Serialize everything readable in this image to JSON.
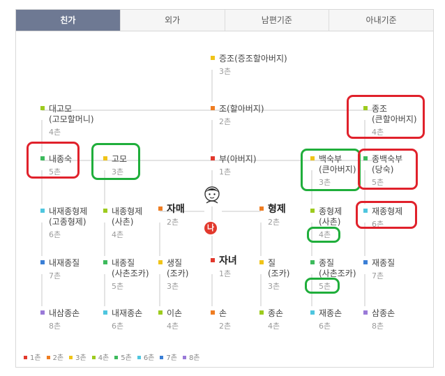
{
  "tabs": [
    {
      "label": "친가",
      "active": true
    },
    {
      "label": "외가",
      "active": false
    },
    {
      "label": "남편기준",
      "active": false
    },
    {
      "label": "아내기준",
      "active": false
    }
  ],
  "colors": {
    "1": "#e2392d",
    "2": "#ef7d22",
    "3": "#f0c419",
    "4": "#9dcb1e",
    "5": "#3dba5c",
    "6": "#4fc6df",
    "7": "#3b7fd6",
    "8": "#9a7ad8"
  },
  "nodes": [
    {
      "id": "jeungjo",
      "l1": "증조(증조할아버지)",
      "l2": "",
      "chon": "3촌",
      "c": "3"
    },
    {
      "id": "jo",
      "l1": "조(할아버지)",
      "l2": "",
      "chon": "2촌",
      "c": "2"
    },
    {
      "id": "dae-gomo",
      "l1": "대고모",
      "l2": "(고모할머니)",
      "chon": "4촌",
      "c": "4"
    },
    {
      "id": "jongjo",
      "l1": "종조",
      "l2": "(큰할아버지)",
      "chon": "4촌",
      "c": "4"
    },
    {
      "id": "naejongsuk",
      "l1": "내종숙",
      "l2": "",
      "chon": "5촌",
      "c": "5"
    },
    {
      "id": "gomo",
      "l1": "고모",
      "l2": "",
      "chon": "3촌",
      "c": "3"
    },
    {
      "id": "bu",
      "l1": "부(아버지)",
      "l2": "",
      "chon": "1촌",
      "c": "1"
    },
    {
      "id": "baeksukbu",
      "l1": "백숙부",
      "l2": "(큰아버지)",
      "chon": "3촌",
      "c": "3"
    },
    {
      "id": "jongbaeksukbu",
      "l1": "종백숙부",
      "l2": "(당숙)",
      "chon": "5촌",
      "c": "5"
    },
    {
      "id": "naejaejonghyeongje",
      "l1": "내재종형제",
      "l2": "(고종형제)",
      "chon": "6촌",
      "c": "6"
    },
    {
      "id": "naejonghyeongje",
      "l1": "내종형제",
      "l2": "(사촌)",
      "chon": "4촌",
      "c": "4"
    },
    {
      "id": "jamae",
      "l1": "자매",
      "l2": "",
      "chon": "2촌",
      "c": "2",
      "big": true
    },
    {
      "id": "hyeongje",
      "l1": "형제",
      "l2": "",
      "chon": "2촌",
      "c": "2",
      "big": true
    },
    {
      "id": "jonghyeongje",
      "l1": "종형제",
      "l2": "(사촌)",
      "chon": "4촌",
      "c": "4"
    },
    {
      "id": "jaejonghyeongje",
      "l1": "재종형제",
      "l2": "",
      "chon": "6촌",
      "c": "6"
    },
    {
      "id": "naejaejongjil",
      "l1": "내재종질",
      "l2": "",
      "chon": "7촌",
      "c": "7"
    },
    {
      "id": "naejongjil",
      "l1": "내종질",
      "l2": "(사촌조카)",
      "chon": "5촌",
      "c": "5"
    },
    {
      "id": "saengjil",
      "l1": "생질",
      "l2": "(조카)",
      "chon": "3촌",
      "c": "3"
    },
    {
      "id": "janyeo",
      "l1": "자녀",
      "l2": "",
      "chon": "1촌",
      "c": "1",
      "big": true
    },
    {
      "id": "jil",
      "l1": "질",
      "l2": "(조카)",
      "chon": "3촌",
      "c": "3"
    },
    {
      "id": "jongjil",
      "l1": "종질",
      "l2": "(사촌조카)",
      "chon": "5촌",
      "c": "5"
    },
    {
      "id": "jaejongjil",
      "l1": "재종질",
      "l2": "",
      "chon": "7촌",
      "c": "7"
    },
    {
      "id": "naesamjongson",
      "l1": "내삼종손",
      "l2": "",
      "chon": "8촌",
      "c": "8"
    },
    {
      "id": "naejaejongson",
      "l1": "내재종손",
      "l2": "",
      "chon": "6촌",
      "c": "6"
    },
    {
      "id": "ison",
      "l1": "이손",
      "l2": "",
      "chon": "4촌",
      "c": "4"
    },
    {
      "id": "son",
      "l1": "손",
      "l2": "",
      "chon": "2촌",
      "c": "2"
    },
    {
      "id": "jongson",
      "l1": "종손",
      "l2": "",
      "chon": "4촌",
      "c": "4"
    },
    {
      "id": "jaejongson",
      "l1": "재종손",
      "l2": "",
      "chon": "6촌",
      "c": "6"
    },
    {
      "id": "samjongson",
      "l1": "삼종손",
      "l2": "",
      "chon": "8촌",
      "c": "8"
    }
  ],
  "me": {
    "label": "나"
  },
  "legend": [
    {
      "c": "1",
      "label": "1촌"
    },
    {
      "c": "2",
      "label": "2촌"
    },
    {
      "c": "3",
      "label": "3촌"
    },
    {
      "c": "4",
      "label": "4촌"
    },
    {
      "c": "5",
      "label": "5촌"
    },
    {
      "c": "6",
      "label": "6촌"
    },
    {
      "c": "7",
      "label": "7촌"
    },
    {
      "c": "8",
      "label": "8촌"
    }
  ]
}
